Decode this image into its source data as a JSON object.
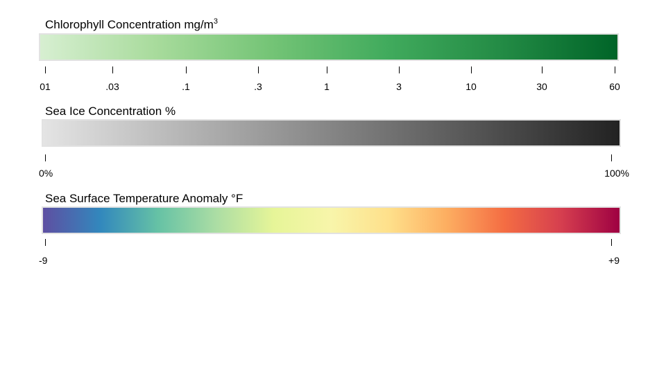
{
  "legends": [
    {
      "title": "Chlorophyll Concentration mg/m",
      "title_sup": "3",
      "colors": [
        "#d7efd1",
        "#a8db9c",
        "#74c476",
        "#41ab5d",
        "#238b45",
        "#006428"
      ],
      "ticks": [
        "01",
        ".03",
        ".1",
        ".3",
        "1",
        "3",
        "10",
        "30",
        "60"
      ]
    },
    {
      "title": "Sea Ice Concentration %",
      "title_sup": "",
      "colors": [
        "#e4e4e4",
        "#b4b4b4",
        "#858585",
        "#555555",
        "#222222"
      ],
      "ticks": [
        "0%",
        "100%"
      ]
    },
    {
      "title": "Sea Surface Temperature Anomaly °F",
      "title_sup": "",
      "colors": [
        "#5e4fa2",
        "#3288bd",
        "#66c2a5",
        "#abdda4",
        "#e6f598",
        "#f8f5aa",
        "#fee08b",
        "#fdae61",
        "#f46d43",
        "#d53e4f",
        "#9e0142"
      ],
      "ticks": [
        "-9",
        "+9"
      ]
    }
  ]
}
